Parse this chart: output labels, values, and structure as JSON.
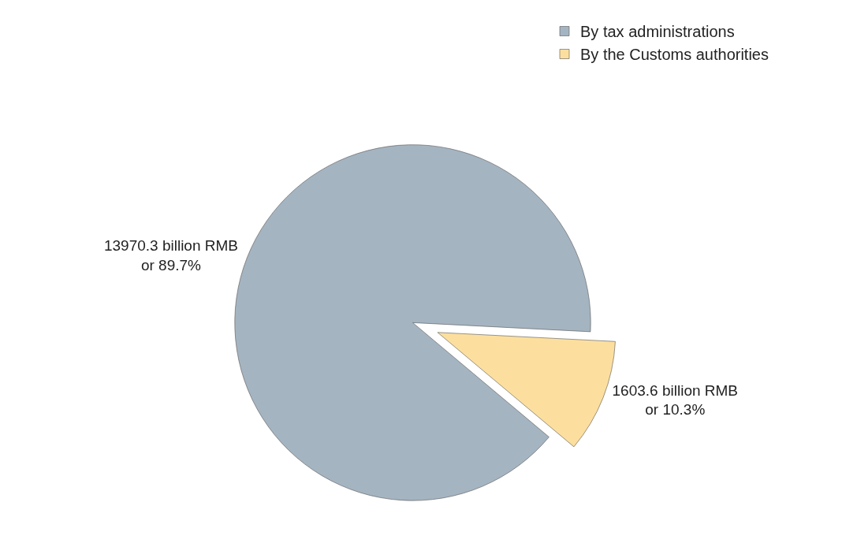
{
  "chart_data": {
    "type": "pie",
    "categories": [
      "By tax administrations",
      "By the Customs authorities"
    ],
    "values": [
      89.7,
      10.3
    ],
    "colors": [
      "#a5b4c1",
      "#fcdf9f"
    ],
    "value_labels": [
      "13970.3 billion RMB\nor 89.7%",
      "1603.6 billion RMB\nor 10.3%"
    ],
    "legend": "top right"
  }
}
